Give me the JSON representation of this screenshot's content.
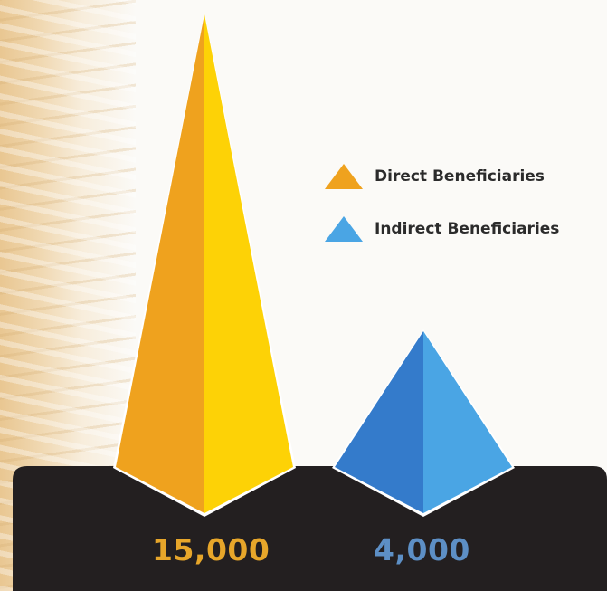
{
  "colors": {
    "direct_dark": "#efa21e",
    "direct_light": "#fdd206",
    "indirect_dark": "#347bcb",
    "indirect_light": "#4aa5e4",
    "base": "#231f20",
    "direct_label": "#e7a62a",
    "indirect_label": "#5d8fc5"
  },
  "chart_data": {
    "type": "bar",
    "categories": [
      "Direct Beneficiaries",
      "Indirect Beneficiaries"
    ],
    "values": [
      15000,
      4000
    ],
    "value_labels": [
      "15,000",
      "4,000"
    ],
    "ylim": [
      0,
      15000
    ],
    "legend": [
      "Direct Beneficiaries",
      "Indirect Beneficiaries"
    ],
    "legend_position": "right",
    "grid": false
  }
}
